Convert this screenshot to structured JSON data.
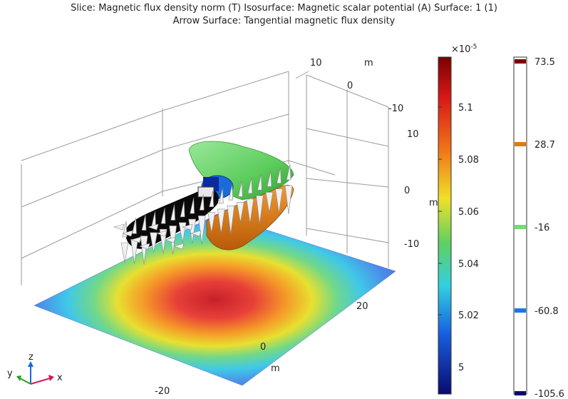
{
  "title": {
    "line1": "Slice: Magnetic flux density norm (T)  Isosurface: Magnetic scalar potential (A)  Surface: 1 (1)",
    "line2": "Arrow Surface: Tangential magnetic flux density"
  },
  "axes": {
    "unit": "m",
    "y_ticks": [
      "10",
      "0",
      "-10"
    ],
    "z_ticks": [
      "10",
      "0",
      "-10"
    ],
    "x_ticks": [
      "20",
      "0",
      "-20"
    ]
  },
  "colorbar_slice": {
    "exponent": "×10",
    "exponent_power": "-5",
    "ticks": [
      "5.1",
      "5.08",
      "5.06",
      "5.04",
      "5.02",
      "5"
    ]
  },
  "colorbar_iso": {
    "ticks": [
      "73.5",
      "28.7",
      "-16",
      "-60.8",
      "-105.6"
    ],
    "colors": [
      "#7a0000",
      "#e07a10",
      "#6ee06e",
      "#1a78e0",
      "#0a0a70"
    ]
  },
  "triad": {
    "x_label": "x",
    "y_label": "y",
    "z_label": "z"
  }
}
